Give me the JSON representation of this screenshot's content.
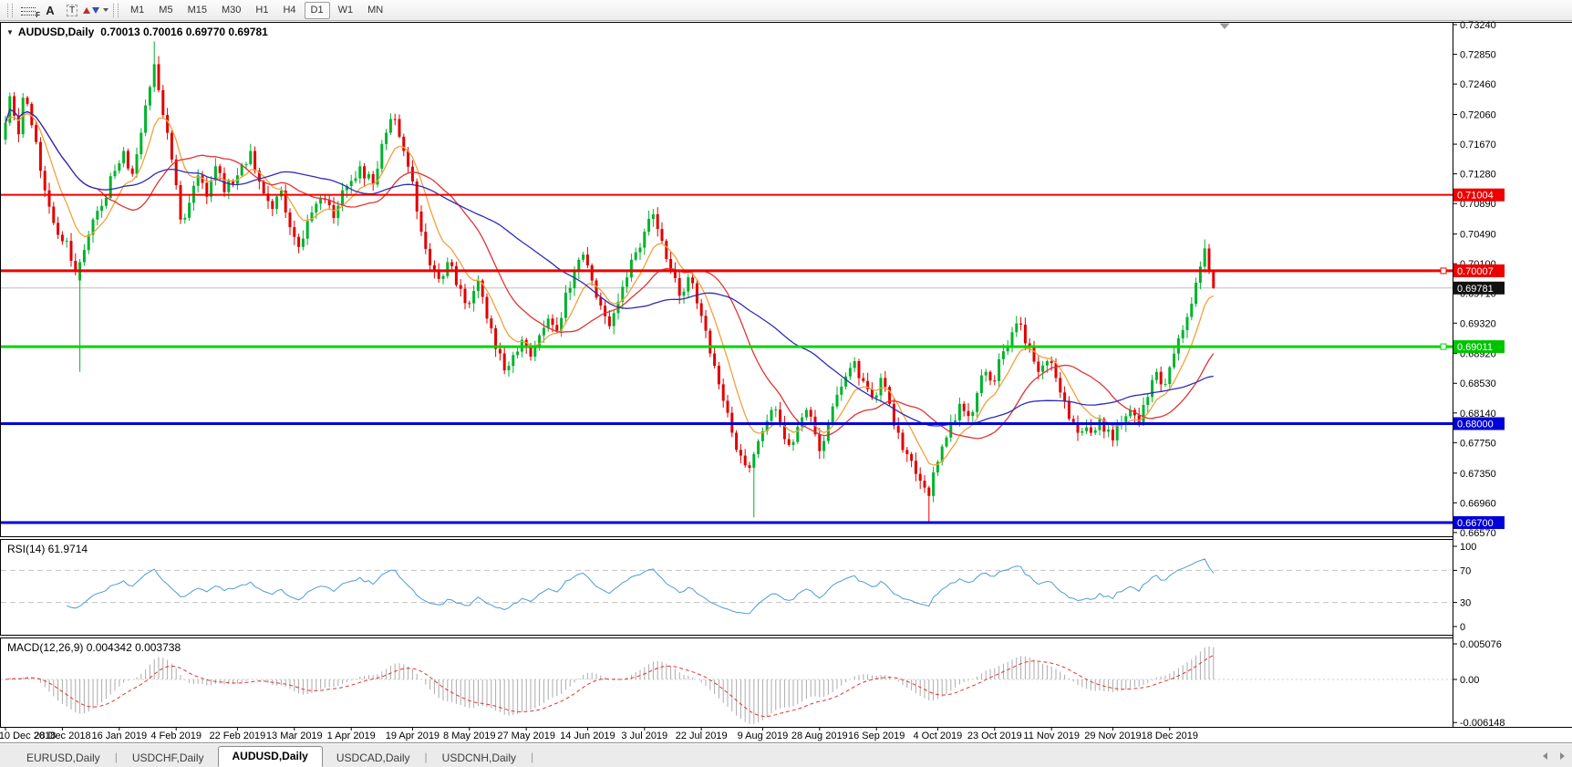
{
  "toolbar": {
    "tools": [
      {
        "id": "fibonacci",
        "glyph": "F"
      },
      {
        "id": "text",
        "glyph": "A"
      },
      {
        "id": "text-label",
        "glyph": "T"
      }
    ],
    "timeframes": [
      "M1",
      "M5",
      "M15",
      "M30",
      "H1",
      "H4",
      "D1",
      "W1",
      "MN"
    ],
    "active_timeframe": "D1"
  },
  "chart": {
    "title_symbol": "AUDUSD,Daily",
    "title_ohlc": "0.70013 0.70016 0.69770 0.69781",
    "collapse_arrow": "▼"
  },
  "chart_data": {
    "type": "candlestick",
    "symbol": "AUDUSD",
    "period": "Daily",
    "bars": 277,
    "current_bar": {
      "open": 0.70013,
      "high": 0.70016,
      "low": 0.6977,
      "close": 0.69781
    },
    "price_axis": {
      "labels": [
        "0.73240",
        "0.72850",
        "0.72460",
        "0.72060",
        "0.71670",
        "0.71280",
        "0.70890",
        "0.70490",
        "0.70100",
        "0.69710",
        "0.69320",
        "0.68920",
        "0.68530",
        "0.68140",
        "0.67750",
        "0.67350",
        "0.66960",
        "0.66570"
      ],
      "min": 0.6657,
      "max": 0.7324
    },
    "levels": [
      {
        "price": 0.71004,
        "label": "0.71004",
        "color": "#ee0000",
        "badge_bg": "#ee0000",
        "badge_fg": "#ffffff",
        "width": 2,
        "handle": false
      },
      {
        "price": 0.70007,
        "label": "0.70007",
        "color": "#ee0000",
        "badge_bg": "#ee0000",
        "badge_fg": "#ffffff",
        "width": 3,
        "handle": true
      },
      {
        "price": 0.69011,
        "label": "0.69011",
        "color": "#00d400",
        "badge_bg": "#00c400",
        "badge_fg": "#ffffff",
        "width": 3,
        "handle": true
      },
      {
        "price": 0.68,
        "label": "0.68000",
        "color": "#0000e0",
        "badge_bg": "#0000d8",
        "badge_fg": "#ffffff",
        "width": 3,
        "handle": false
      },
      {
        "price": 0.667,
        "label": "0.66700",
        "color": "#0000e0",
        "badge_bg": "#0000d8",
        "badge_fg": "#ffffff",
        "width": 3,
        "handle": false
      }
    ],
    "bid_line": {
      "price": 0.69781,
      "label": "0.69781",
      "color": "#bdbdbd",
      "badge_bg": "#111111",
      "badge_fg": "#ffffff"
    },
    "candle_colors": {
      "up": "#00b22c",
      "down": "#e00000"
    },
    "close_anchors": [
      [
        0,
        0.7195
      ],
      [
        1,
        0.723
      ],
      [
        3,
        0.718
      ],
      [
        4,
        0.7228
      ],
      [
        6,
        0.7192
      ],
      [
        8,
        0.7132
      ],
      [
        10,
        0.7085
      ],
      [
        12,
        0.7048
      ],
      [
        14,
        0.704
      ],
      [
        16,
        0.7002
      ],
      [
        17,
        0.7012
      ],
      [
        19,
        0.7048
      ],
      [
        22,
        0.7086
      ],
      [
        25,
        0.7132
      ],
      [
        27,
        0.7158
      ],
      [
        29,
        0.7128
      ],
      [
        31,
        0.7182
      ],
      [
        33,
        0.7242
      ],
      [
        34,
        0.7272
      ],
      [
        35,
        0.7238
      ],
      [
        37,
        0.7182
      ],
      [
        40,
        0.7068
      ],
      [
        42,
        0.709
      ],
      [
        44,
        0.7126
      ],
      [
        46,
        0.7098
      ],
      [
        48,
        0.7138
      ],
      [
        50,
        0.7104
      ],
      [
        53,
        0.7126
      ],
      [
        56,
        0.7158
      ],
      [
        58,
        0.7118
      ],
      [
        61,
        0.7082
      ],
      [
        63,
        0.7106
      ],
      [
        65,
        0.7058
      ],
      [
        67,
        0.7032
      ],
      [
        69,
        0.7066
      ],
      [
        72,
        0.7096
      ],
      [
        75,
        0.707
      ],
      [
        78,
        0.7112
      ],
      [
        81,
        0.7138
      ],
      [
        84,
        0.7114
      ],
      [
        87,
        0.7182
      ],
      [
        89,
        0.72
      ],
      [
        91,
        0.7158
      ],
      [
        93,
        0.7118
      ],
      [
        95,
        0.7052
      ],
      [
        97,
        0.7008
      ],
      [
        99,
        0.699
      ],
      [
        101,
        0.7012
      ],
      [
        103,
        0.6982
      ],
      [
        106,
        0.6958
      ],
      [
        108,
        0.6988
      ],
      [
        110,
        0.6938
      ],
      [
        112,
        0.6898
      ],
      [
        114,
        0.687
      ],
      [
        116,
        0.689
      ],
      [
        118,
        0.691
      ],
      [
        120,
        0.6888
      ],
      [
        122,
        0.6916
      ],
      [
        124,
        0.6938
      ],
      [
        126,
        0.6922
      ],
      [
        128,
        0.6972
      ],
      [
        130,
        0.7
      ],
      [
        132,
        0.7022
      ],
      [
        134,
        0.6988
      ],
      [
        136,
        0.6955
      ],
      [
        138,
        0.6928
      ],
      [
        140,
        0.696
      ],
      [
        142,
        0.6992
      ],
      [
        144,
        0.7025
      ],
      [
        146,
        0.7052
      ],
      [
        148,
        0.7075
      ],
      [
        150,
        0.704
      ],
      [
        152,
        0.7002
      ],
      [
        154,
        0.6968
      ],
      [
        156,
        0.6992
      ],
      [
        158,
        0.6958
      ],
      [
        160,
        0.6922
      ],
      [
        162,
        0.6876
      ],
      [
        164,
        0.683
      ],
      [
        166,
        0.6788
      ],
      [
        168,
        0.6758
      ],
      [
        170,
        0.6742
      ],
      [
        171,
        0.676
      ],
      [
        173,
        0.679
      ],
      [
        175,
        0.6818
      ],
      [
        177,
        0.6802
      ],
      [
        179,
        0.6772
      ],
      [
        181,
        0.6796
      ],
      [
        183,
        0.6818
      ],
      [
        185,
        0.6786
      ],
      [
        186,
        0.6764
      ],
      [
        188,
        0.68
      ],
      [
        190,
        0.6838
      ],
      [
        192,
        0.6862
      ],
      [
        194,
        0.6882
      ],
      [
        196,
        0.6856
      ],
      [
        198,
        0.6834
      ],
      [
        200,
        0.686
      ],
      [
        202,
        0.6826
      ],
      [
        204,
        0.6788
      ],
      [
        206,
        0.676
      ],
      [
        208,
        0.6734
      ],
      [
        210,
        0.6716
      ],
      [
        211,
        0.6705
      ],
      [
        212,
        0.6736
      ],
      [
        214,
        0.677
      ],
      [
        216,
        0.6802
      ],
      [
        218,
        0.6826
      ],
      [
        220,
        0.681
      ],
      [
        222,
        0.684
      ],
      [
        224,
        0.6868
      ],
      [
        226,
        0.6856
      ],
      [
        228,
        0.6895
      ],
      [
        230,
        0.692
      ],
      [
        232,
        0.693
      ],
      [
        234,
        0.69
      ],
      [
        236,
        0.6868
      ],
      [
        238,
        0.6882
      ],
      [
        240,
        0.686
      ],
      [
        242,
        0.683
      ],
      [
        244,
        0.6802
      ],
      [
        246,
        0.679
      ],
      [
        248,
        0.6788
      ],
      [
        250,
        0.6806
      ],
      [
        252,
        0.6792
      ],
      [
        253,
        0.6778
      ],
      [
        255,
        0.68
      ],
      [
        257,
        0.6818
      ],
      [
        259,
        0.68
      ],
      [
        261,
        0.6835
      ],
      [
        263,
        0.6868
      ],
      [
        265,
        0.6852
      ],
      [
        266,
        0.6874
      ],
      [
        268,
        0.6912
      ],
      [
        270,
        0.694
      ],
      [
        272,
        0.6985
      ],
      [
        274,
        0.703
      ],
      [
        275,
        0.70013
      ],
      [
        276,
        0.69781
      ]
    ],
    "overrides": {
      "17": {
        "open": 0.6988,
        "low": 0.6868
      },
      "34": {
        "high": 0.7302
      },
      "89": {
        "high": 0.7207
      },
      "148": {
        "high": 0.7082
      },
      "171": {
        "low": 0.6677
      },
      "211": {
        "low": 0.6671
      },
      "274": {
        "high": 0.7042
      },
      "276": {
        "open": 0.70013,
        "high": 0.70016,
        "low": 0.6977,
        "close": 0.69781
      }
    },
    "noise": 0.001,
    "wick": 0.0009,
    "seed": 20190102,
    "moving_averages": [
      {
        "type": "ema",
        "period": 9,
        "color": "#f2a13c"
      },
      {
        "type": "sma",
        "period": 22,
        "color": "#e03434"
      },
      {
        "type": "sma",
        "period": 45,
        "color": "#2d2db8"
      }
    ],
    "date_axis": {
      "labels": [
        "10 Dec 2018",
        "28 Dec 2018",
        "16 Jan 2019",
        "4 Feb 2019",
        "22 Feb 2019",
        "13 Mar 2019",
        "1 Apr 2019",
        "19 Apr 2019",
        "8 May 2019",
        "27 May 2019",
        "14 Jun 2019",
        "3 Jul 2019",
        "22 Jul 2019",
        "9 Aug 2019",
        "28 Aug 2019",
        "16 Sep 2019",
        "4 Oct 2019",
        "23 Oct 2019",
        "11 Nov 2019",
        "29 Nov 2019",
        "18 Dec 2019"
      ],
      "bar_indices": [
        0,
        13,
        26,
        39,
        53,
        66,
        79,
        93,
        106,
        119,
        133,
        146,
        159,
        173,
        186,
        199,
        213,
        226,
        239,
        253,
        266
      ]
    },
    "rsi": {
      "label": "RSI(14) 61.9714",
      "period": 14,
      "value": 61.9714,
      "levels": [
        70,
        30
      ],
      "scale_labels": [
        "100",
        "70",
        "30",
        "0"
      ],
      "color": "#4f9bd8"
    },
    "macd": {
      "label": "MACD(12,26,9) 0.004342 0.003738",
      "fast": 12,
      "slow": 26,
      "signal_period": 9,
      "value": 0.004342,
      "signal_value": 0.003738,
      "scale_labels": [
        "0.005076",
        "0.00",
        "-0.006148"
      ],
      "scale_max": 0.005076,
      "scale_min": -0.006148,
      "histogram_color": "#ababab",
      "signal_color": "#e03434"
    }
  },
  "tabs": {
    "items": [
      "EURUSD,Daily",
      "USDCHF,Daily",
      "AUDUSD,Daily",
      "USDCAD,Daily",
      "USDCNH,Daily"
    ],
    "active": "AUDUSD,Daily"
  }
}
